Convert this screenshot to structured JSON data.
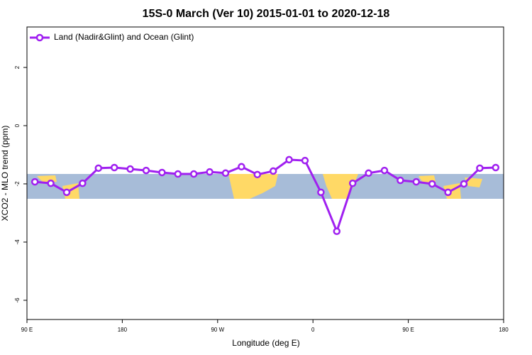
{
  "chart_data": {
    "type": "line",
    "title": "15S-0 March (Ver 10)   2015-01-01 to 2020-12-18",
    "x_label": "Longitude (deg E)",
    "y_label": "XCO2 - MLO trend (ppm)",
    "x": [
      97.5,
      112.5,
      127.5,
      142.5,
      157.5,
      172.5,
      187.5,
      202.5,
      217.5,
      232.5,
      247.5,
      262.5,
      277.5,
      292.5,
      307.5,
      322.5,
      337.5,
      352.5,
      367.5,
      382.5,
      397.5,
      412.5,
      427.5,
      442.5,
      457.5,
      472.5,
      487.5,
      502.5,
      517.5,
      532.5
    ],
    "series": [
      {
        "name": "Land (Nadir&Glint) and Ocean (Glint)",
        "color": "#a020f0",
        "values": [
          -1.93,
          -1.98,
          -2.29,
          -1.98,
          -1.46,
          -1.44,
          -1.49,
          -1.54,
          -1.61,
          -1.66,
          -1.66,
          -1.59,
          -1.63,
          -1.41,
          -1.68,
          -1.56,
          -1.17,
          -1.2,
          -2.29,
          -3.63,
          -1.98,
          -1.63,
          -1.54,
          -1.88,
          -1.93,
          -2.0,
          -2.29,
          -2.0,
          -1.46,
          -1.44
        ]
      }
    ],
    "xlim": [
      90,
      540
    ],
    "xticks": [
      {
        "value": 90,
        "label": "90 E"
      },
      180,
      {
        "value": 270,
        "label": "90 W"
      },
      {
        "value": 360,
        "label": "0"
      },
      {
        "value": 450,
        "label": "90 E"
      },
      {
        "value": 540,
        "label": "180"
      }
    ],
    "ylim": [
      -6.66,
      3.39
    ],
    "yticks": [
      -6,
      -4,
      -2,
      0,
      2
    ],
    "legend": "top-left"
  }
}
